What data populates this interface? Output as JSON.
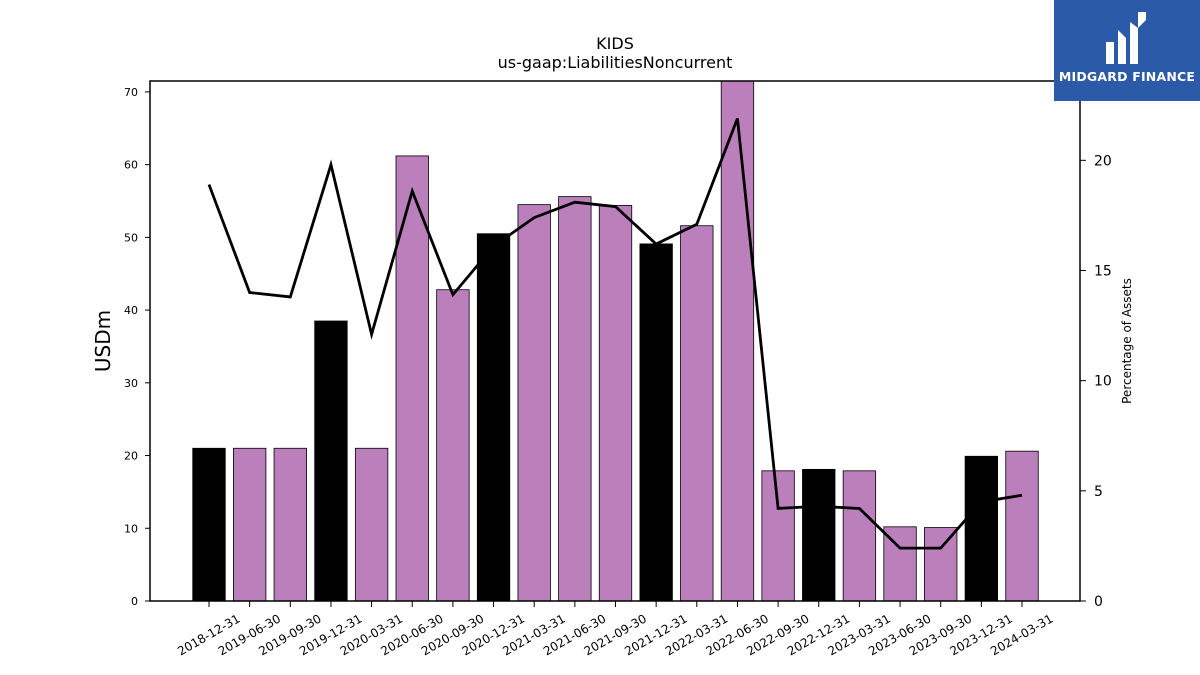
{
  "chart_data": {
    "type": "bar+line",
    "title": "KIDS",
    "subtitle": "us-gaap:LiabilitiesNoncurrent",
    "ylabel": "USDm",
    "y2label": "Percentage of Assets",
    "ylim": [
      0,
      71.5
    ],
    "y2lim": [
      0,
      23.6
    ],
    "yticks": [
      0,
      10,
      20,
      30,
      40,
      50,
      60,
      70
    ],
    "y2ticks": [
      0,
      5,
      10,
      15,
      20
    ],
    "categories": [
      "2018-12-31",
      "2019-06-30",
      "2019-09-30",
      "2019-12-31",
      "2020-03-31",
      "2020-06-30",
      "2020-09-30",
      "2020-12-31",
      "2021-03-31",
      "2021-06-30",
      "2021-09-30",
      "2021-12-31",
      "2022-03-31",
      "2022-06-30",
      "2022-09-30",
      "2022-12-31",
      "2023-03-31",
      "2023-06-30",
      "2023-09-30",
      "2023-12-31",
      "2024-03-31"
    ],
    "bar_values": [
      21.0,
      21.0,
      21.0,
      38.5,
      21.0,
      61.2,
      42.8,
      50.5,
      54.5,
      55.6,
      54.4,
      49.1,
      51.6,
      71.5,
      17.9,
      18.1,
      17.9,
      10.2,
      10.1,
      19.9,
      20.6
    ],
    "bar_colors": [
      "#000000",
      "#bb7fbb",
      "#bb7fbb",
      "#000000",
      "#bb7fbb",
      "#bb7fbb",
      "#bb7fbb",
      "#000000",
      "#bb7fbb",
      "#bb7fbb",
      "#bb7fbb",
      "#000000",
      "#bb7fbb",
      "#bb7fbb",
      "#bb7fbb",
      "#000000",
      "#bb7fbb",
      "#bb7fbb",
      "#bb7fbb",
      "#000000",
      "#bb7fbb"
    ],
    "line_values": [
      18.9,
      14.0,
      13.8,
      19.8,
      12.1,
      18.6,
      13.9,
      16.1,
      17.4,
      18.1,
      17.9,
      16.2,
      17.1,
      21.9,
      4.2,
      4.3,
      4.2,
      2.4,
      2.4,
      4.5,
      4.8
    ],
    "line_color": "#000000",
    "grid": false
  },
  "logo": {
    "text": "MIDGARD FINANCE",
    "color": "#2b5aa8"
  }
}
